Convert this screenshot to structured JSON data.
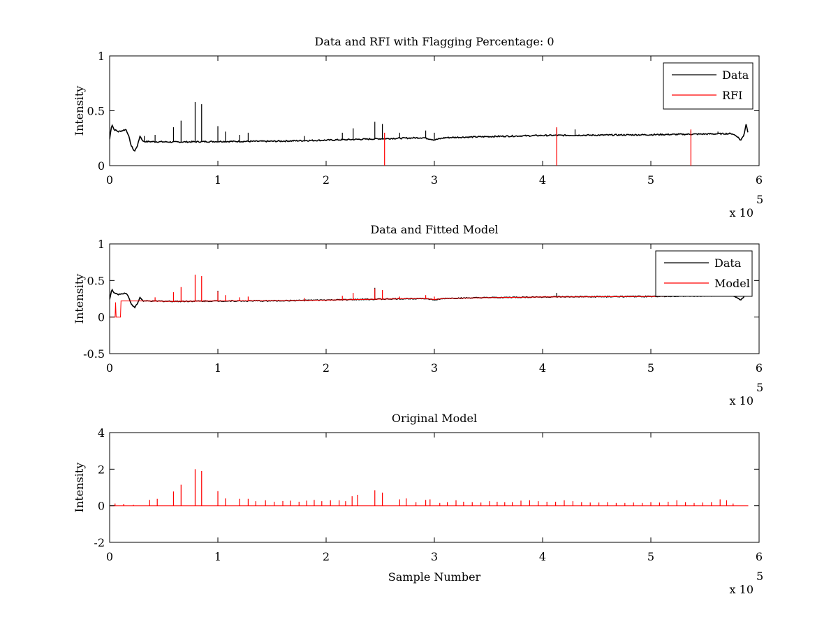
{
  "chart_data": [
    {
      "type": "line",
      "title": "Data and RFI with Flagging Percentage: 0",
      "xlabel": "",
      "ylabel": "Intensity",
      "xlim": [
        0,
        600000
      ],
      "ylim": [
        0,
        1
      ],
      "xticks": [
        "0",
        "1",
        "2",
        "3",
        "4",
        "5",
        "6"
      ],
      "yticks": [
        "0",
        "0.5",
        "1"
      ],
      "xscale_label": "x 10",
      "xscale_exp": "5",
      "legend_placement": "top-right",
      "grid": false,
      "series": [
        {
          "name": "Data",
          "color": "#000000",
          "baseline": [
            [
              0,
              0.24
            ],
            [
              2000,
              0.38
            ],
            [
              4000,
              0.33
            ],
            [
              8000,
              0.31
            ],
            [
              12000,
              0.32
            ],
            [
              15000,
              0.33
            ],
            [
              17000,
              0.29
            ],
            [
              20000,
              0.18
            ],
            [
              23000,
              0.13
            ],
            [
              26000,
              0.19
            ],
            [
              28000,
              0.27
            ],
            [
              31000,
              0.22
            ],
            [
              60000,
              0.215
            ],
            [
              100000,
              0.22
            ],
            [
              150000,
              0.222
            ],
            [
              200000,
              0.232
            ],
            [
              250000,
              0.245
            ],
            [
              290000,
              0.255
            ],
            [
              300000,
              0.235
            ],
            [
              310000,
              0.255
            ],
            [
              350000,
              0.265
            ],
            [
              400000,
              0.275
            ],
            [
              450000,
              0.278
            ],
            [
              500000,
              0.282
            ],
            [
              550000,
              0.288
            ],
            [
              575000,
              0.292
            ],
            [
              580000,
              0.265
            ],
            [
              583000,
              0.23
            ],
            [
              586000,
              0.28
            ],
            [
              588000,
              0.38
            ],
            [
              590000,
              0.29
            ]
          ],
          "spikes": [
            [
              32000,
              0.27
            ],
            [
              42000,
              0.28
            ],
            [
              59000,
              0.35
            ],
            [
              66000,
              0.41
            ],
            [
              79000,
              0.58
            ],
            [
              85000,
              0.56
            ],
            [
              100000,
              0.36
            ],
            [
              107000,
              0.31
            ],
            [
              120000,
              0.28
            ],
            [
              128000,
              0.3
            ],
            [
              180000,
              0.27
            ],
            [
              215000,
              0.3
            ],
            [
              225000,
              0.34
            ],
            [
              245000,
              0.4
            ],
            [
              252000,
              0.38
            ],
            [
              268000,
              0.3
            ],
            [
              292000,
              0.32
            ],
            [
              300000,
              0.3
            ],
            [
              413000,
              0.34
            ],
            [
              430000,
              0.33
            ],
            [
              537000,
              0.32
            ],
            [
              562000,
              0.31
            ]
          ]
        },
        {
          "name": "RFI",
          "color": "#ff0000",
          "spikes": [
            [
              254000,
              0.3
            ],
            [
              413000,
              0.35
            ],
            [
              537000,
              0.33
            ]
          ]
        }
      ]
    },
    {
      "type": "line",
      "title": "Data and Fitted Model",
      "xlabel": "",
      "ylabel": "Intensity",
      "xlim": [
        0,
        600000
      ],
      "ylim": [
        -0.5,
        1
      ],
      "xticks": [
        "0",
        "1",
        "2",
        "3",
        "4",
        "5",
        "6"
      ],
      "yticks": [
        "-0.5",
        "0",
        "0.5",
        "1"
      ],
      "xscale_label": "x 10",
      "xscale_exp": "5",
      "legend_placement": "top-right",
      "grid": false,
      "series": [
        {
          "name": "Data",
          "color": "#000000",
          "baseline": [
            [
              0,
              0.24
            ],
            [
              2000,
              0.38
            ],
            [
              4000,
              0.33
            ],
            [
              8000,
              0.31
            ],
            [
              12000,
              0.32
            ],
            [
              15000,
              0.33
            ],
            [
              17000,
              0.29
            ],
            [
              20000,
              0.18
            ],
            [
              23000,
              0.13
            ],
            [
              26000,
              0.19
            ],
            [
              28000,
              0.27
            ],
            [
              31000,
              0.22
            ],
            [
              60000,
              0.215
            ],
            [
              100000,
              0.22
            ],
            [
              150000,
              0.222
            ],
            [
              200000,
              0.232
            ],
            [
              250000,
              0.245
            ],
            [
              290000,
              0.255
            ],
            [
              300000,
              0.235
            ],
            [
              310000,
              0.255
            ],
            [
              350000,
              0.265
            ],
            [
              400000,
              0.275
            ],
            [
              450000,
              0.278
            ],
            [
              500000,
              0.282
            ],
            [
              550000,
              0.288
            ],
            [
              575000,
              0.292
            ],
            [
              580000,
              0.265
            ],
            [
              583000,
              0.23
            ],
            [
              586000,
              0.28
            ],
            [
              588000,
              0.38
            ],
            [
              590000,
              0.29
            ]
          ],
          "spikes": [
            [
              100000,
              0.36
            ],
            [
              245000,
              0.4
            ],
            [
              413000,
              0.33
            ]
          ]
        },
        {
          "name": "Model",
          "color": "#ff0000",
          "baseline": [
            [
              0,
              0.0
            ],
            [
              5000,
              0.0
            ],
            [
              5500,
              0.2
            ],
            [
              6000,
              0.0
            ],
            [
              10000,
              0.0
            ],
            [
              10500,
              0.22
            ],
            [
              31000,
              0.22
            ],
            [
              60000,
              0.215
            ],
            [
              100000,
              0.22
            ],
            [
              150000,
              0.222
            ],
            [
              200000,
              0.232
            ],
            [
              250000,
              0.245
            ],
            [
              290000,
              0.255
            ],
            [
              300000,
              0.24
            ],
            [
              310000,
              0.255
            ],
            [
              350000,
              0.265
            ],
            [
              400000,
              0.275
            ],
            [
              450000,
              0.278
            ],
            [
              500000,
              0.282
            ],
            [
              540000,
              0.285
            ]
          ],
          "spikes": [
            [
              42000,
              0.27
            ],
            [
              59000,
              0.34
            ],
            [
              66000,
              0.41
            ],
            [
              79000,
              0.58
            ],
            [
              85000,
              0.56
            ],
            [
              100000,
              0.35
            ],
            [
              107000,
              0.3
            ],
            [
              120000,
              0.27
            ],
            [
              128000,
              0.28
            ],
            [
              180000,
              0.26
            ],
            [
              215000,
              0.29
            ],
            [
              225000,
              0.33
            ],
            [
              245000,
              0.39
            ],
            [
              252000,
              0.37
            ],
            [
              268000,
              0.28
            ],
            [
              292000,
              0.3
            ],
            [
              300000,
              0.28
            ]
          ]
        }
      ]
    },
    {
      "type": "line",
      "title": "Original Model",
      "xlabel": "Sample Number",
      "ylabel": "Intensity",
      "xlim": [
        0,
        600000
      ],
      "ylim": [
        -2,
        4
      ],
      "xticks": [
        "0",
        "1",
        "2",
        "3",
        "4",
        "5",
        "6"
      ],
      "yticks": [
        "-2",
        "0",
        "2",
        "4"
      ],
      "xscale_label": "x 10",
      "xscale_exp": "5",
      "grid": false,
      "series": [
        {
          "name": "",
          "color": "#ff0000",
          "baseline": [
            [
              0,
              0.0
            ],
            [
              590000,
              0.0
            ]
          ],
          "spikes": [
            [
              5000,
              0.12
            ],
            [
              13000,
              0.1
            ],
            [
              22000,
              0.05
            ],
            [
              37000,
              0.32
            ],
            [
              44000,
              0.38
            ],
            [
              59000,
              0.78
            ],
            [
              66000,
              1.15
            ],
            [
              79000,
              2.0
            ],
            [
              85000,
              1.9
            ],
            [
              100000,
              0.8
            ],
            [
              107000,
              0.4
            ],
            [
              120000,
              0.38
            ],
            [
              128000,
              0.38
            ],
            [
              135000,
              0.25
            ],
            [
              144000,
              0.3
            ],
            [
              152000,
              0.22
            ],
            [
              160000,
              0.26
            ],
            [
              167000,
              0.28
            ],
            [
              175000,
              0.22
            ],
            [
              182000,
              0.28
            ],
            [
              189000,
              0.32
            ],
            [
              196000,
              0.25
            ],
            [
              204000,
              0.3
            ],
            [
              212000,
              0.3
            ],
            [
              218000,
              0.25
            ],
            [
              224000,
              0.52
            ],
            [
              229000,
              0.6
            ],
            [
              245000,
              0.85
            ],
            [
              252000,
              0.72
            ],
            [
              268000,
              0.35
            ],
            [
              274000,
              0.4
            ],
            [
              283000,
              0.2
            ],
            [
              292000,
              0.32
            ],
            [
              296000,
              0.35
            ],
            [
              305000,
              0.15
            ],
            [
              312000,
              0.2
            ],
            [
              320000,
              0.3
            ],
            [
              327000,
              0.22
            ],
            [
              335000,
              0.2
            ],
            [
              343000,
              0.18
            ],
            [
              351000,
              0.25
            ],
            [
              358000,
              0.22
            ],
            [
              365000,
              0.2
            ],
            [
              372000,
              0.2
            ],
            [
              380000,
              0.28
            ],
            [
              388000,
              0.3
            ],
            [
              396000,
              0.25
            ],
            [
              404000,
              0.22
            ],
            [
              412000,
              0.22
            ],
            [
              420000,
              0.3
            ],
            [
              428000,
              0.25
            ],
            [
              436000,
              0.2
            ],
            [
              444000,
              0.18
            ],
            [
              452000,
              0.18
            ],
            [
              460000,
              0.2
            ],
            [
              468000,
              0.15
            ],
            [
              476000,
              0.15
            ],
            [
              484000,
              0.18
            ],
            [
              492000,
              0.15
            ],
            [
              500000,
              0.2
            ],
            [
              508000,
              0.18
            ],
            [
              516000,
              0.22
            ],
            [
              524000,
              0.3
            ],
            [
              532000,
              0.2
            ],
            [
              540000,
              0.15
            ],
            [
              548000,
              0.18
            ],
            [
              556000,
              0.2
            ],
            [
              564000,
              0.35
            ],
            [
              570000,
              0.3
            ],
            [
              576000,
              0.12
            ]
          ]
        }
      ]
    }
  ]
}
